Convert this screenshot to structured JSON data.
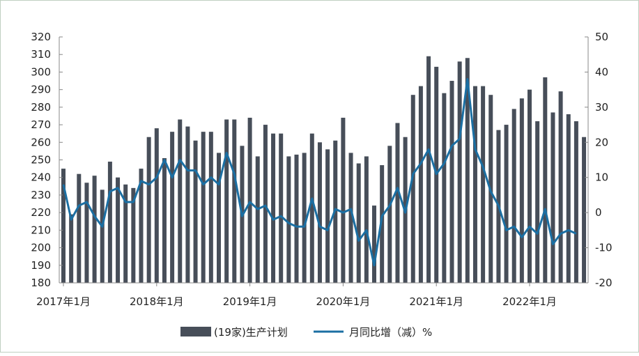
{
  "chart_data": {
    "type": "bar+line",
    "title": "",
    "categories_start": "2017-01",
    "x_tick_labels": [
      "2017年1月",
      "2018年1月",
      "2019年1月",
      "2020年1月",
      "2021年1月",
      "2022年1月"
    ],
    "y_left": {
      "range": [
        180,
        320
      ],
      "step": 10,
      "ticks": [
        "180",
        "190",
        "200",
        "210",
        "220",
        "230",
        "240",
        "250",
        "260",
        "270",
        "280",
        "290",
        "300",
        "310",
        "320"
      ]
    },
    "y_right": {
      "range": [
        -20,
        50
      ],
      "step": 10,
      "ticks": [
        "-20",
        "-10",
        "0",
        "10",
        "20",
        "30",
        "40",
        "50"
      ]
    },
    "series": [
      {
        "name": "(19家)生产计划",
        "type": "bar",
        "axis": "left",
        "color": "#474e59",
        "values": [
          245,
          219,
          242,
          237,
          241,
          233,
          249,
          240,
          236,
          234,
          245,
          263,
          268,
          251,
          266,
          273,
          269,
          261,
          266,
          266,
          254,
          273,
          273,
          258,
          274,
          252,
          270,
          265,
          265,
          252,
          253,
          254,
          265,
          260,
          256,
          261,
          274,
          254,
          248,
          252,
          224,
          247,
          258,
          271,
          263,
          287,
          292,
          309,
          303,
          288,
          295,
          306,
          308,
          292,
          292,
          287,
          267,
          270,
          279,
          285,
          290,
          272,
          297,
          277,
          289,
          276,
          272,
          263
        ]
      },
      {
        "name": "月同比增（减）%",
        "type": "line",
        "axis": "right",
        "color": "#1b6fa3",
        "values": [
          8,
          -2,
          2,
          3,
          -1,
          -4,
          6,
          7,
          3,
          3,
          9,
          8,
          10,
          15,
          10,
          15,
          12,
          12,
          8,
          10,
          8,
          17,
          11,
          -1,
          3,
          1,
          2,
          -2,
          -1,
          -3,
          -4,
          -4,
          4,
          -4,
          -5,
          1,
          0,
          1,
          -8,
          -5,
          -15,
          -1,
          2,
          7,
          0,
          11,
          14,
          18,
          11,
          14,
          19,
          21,
          38,
          18,
          13,
          6,
          2,
          -5,
          -4,
          -7,
          -4,
          -6,
          1,
          -9,
          -6,
          -5,
          -6
        ]
      }
    ],
    "legend": {
      "placement": "bottom",
      "items": [
        "(19家)生产计划",
        "月同比增（减）%"
      ]
    },
    "grid": false
  }
}
